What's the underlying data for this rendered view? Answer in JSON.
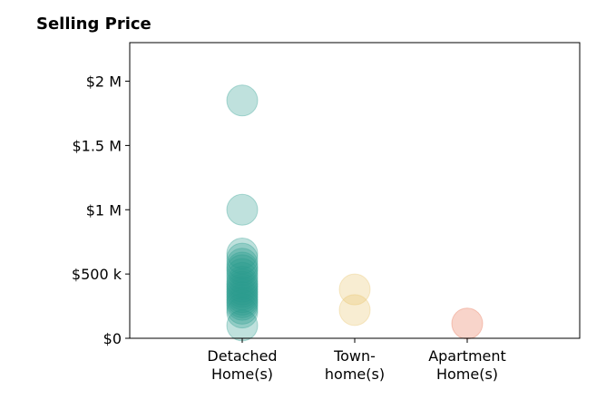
{
  "chart_data": {
    "type": "scatter",
    "title": "Selling Price",
    "xlabel": "",
    "ylabel": "",
    "categories": [
      "Detached\nHome(s)",
      "Town-\nhome(s)",
      "Apartment\nHome(s)"
    ],
    "ylim": [
      0,
      2300000
    ],
    "xlim": [
      -1,
      3
    ],
    "y_ticks": [
      0,
      500000,
      1000000,
      1500000,
      2000000
    ],
    "y_tick_labels": [
      "$0",
      "$500 k",
      "$1 M",
      "$1.5 M",
      "$2 M"
    ],
    "grid": false,
    "series": [
      {
        "category_index": 0,
        "color": "#2a9d8f",
        "values": [
          1850000,
          1000000,
          660000,
          620000,
          580000,
          550000,
          530000,
          500000,
          470000,
          440000,
          420000,
          400000,
          380000,
          360000,
          340000,
          320000,
          300000,
          280000,
          260000,
          230000,
          200000,
          100000
        ]
      },
      {
        "category_index": 1,
        "color": "#e9c46a",
        "values": [
          380000,
          220000
        ]
      },
      {
        "category_index": 2,
        "color": "#e76f51",
        "values": [
          115000
        ]
      }
    ]
  }
}
